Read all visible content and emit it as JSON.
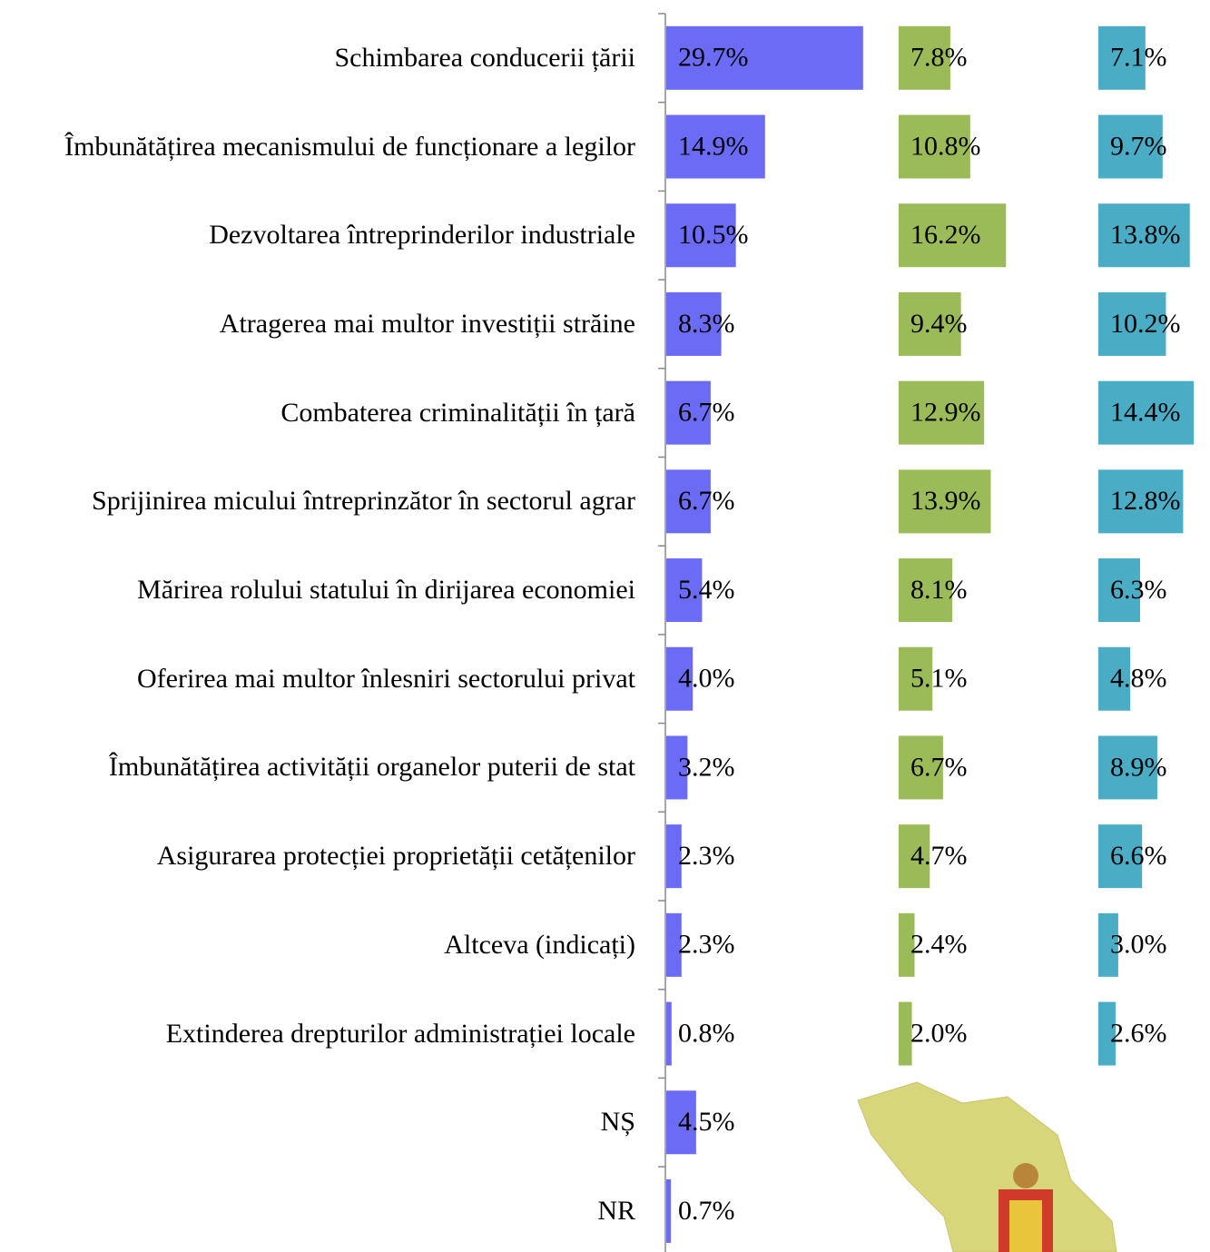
{
  "chart_data": {
    "type": "bar",
    "categories": [
      "Schimbarea conducerii țării",
      "Îmbunătățirea mecanismului de funcționare a legilor",
      "Dezvoltarea întreprinderilor industriale",
      "Atragerea mai multor investiții străine",
      "Combaterea criminalității în țară",
      "Sprijinirea micului întreprinzător în sectorul agrar",
      "Mărirea rolului statului în dirijarea economiei",
      "Oferirea mai multor înlesniri sectorului privat",
      "Îmbunătățirea activității organelor puterii de stat",
      "Asigurarea protecției proprietății cetățenilor",
      "Altceva (indicați)",
      "Extinderea drepturilor administrației locale",
      "NȘ",
      "NR"
    ],
    "series": [
      {
        "color": "#6b6bf5",
        "values": [
          29.7,
          14.9,
          10.5,
          8.3,
          6.7,
          6.7,
          5.4,
          4.0,
          3.2,
          2.3,
          2.3,
          0.8,
          4.5,
          0.7
        ],
        "value_labels": [
          "29.7%",
          "14.9%",
          "10.5%",
          "8.3%",
          "6.7%",
          "6.7%",
          "5.4%",
          "4.0%",
          "3.2%",
          "2.3%",
          "2.3%",
          "0.8%",
          "4.5%",
          "0.7%"
        ]
      },
      {
        "color": "#9bbb59",
        "values": [
          7.8,
          10.8,
          16.2,
          9.4,
          12.9,
          13.9,
          8.1,
          5.1,
          6.7,
          4.7,
          2.4,
          2.0,
          null,
          null
        ],
        "value_labels": [
          "7.8%",
          "10.8%",
          "16.2%",
          "9.4%",
          "12.9%",
          "13.9%",
          "8.1%",
          "5.1%",
          "6.7%",
          "4.7%",
          "2.4%",
          "2.0%",
          null,
          null
        ]
      },
      {
        "color": "#4bacc6",
        "values": [
          7.1,
          9.7,
          13.8,
          10.2,
          14.4,
          12.8,
          6.3,
          4.8,
          8.9,
          6.6,
          3.0,
          2.6,
          null,
          null
        ],
        "value_labels": [
          "7.1%",
          "9.7%",
          "13.8%",
          "10.2%",
          "14.4%",
          "12.8%",
          "6.3%",
          "4.8%",
          "8.9%",
          "6.6%",
          "3.0%",
          "2.6%",
          null,
          null
        ]
      }
    ]
  }
}
